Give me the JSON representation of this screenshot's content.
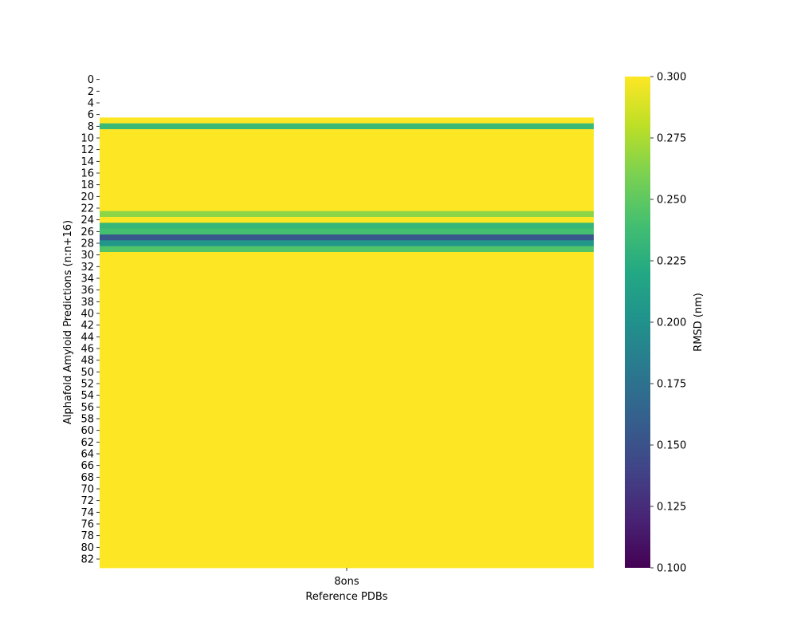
{
  "chart_data": {
    "type": "heatmap",
    "xlabel": "Reference PDBs",
    "ylabel": "Alphafold Amyloid Predictions (n:n+16)",
    "x_categories": [
      "8ons"
    ],
    "y_categories": [
      "0",
      "1",
      "2",
      "3",
      "4",
      "5",
      "6",
      "7",
      "8",
      "9",
      "10",
      "11",
      "12",
      "13",
      "14",
      "15",
      "16",
      "17",
      "18",
      "19",
      "20",
      "21",
      "22",
      "23",
      "24",
      "25",
      "26",
      "27",
      "28",
      "29",
      "30",
      "31",
      "32",
      "33",
      "34",
      "35",
      "36",
      "37",
      "38",
      "39",
      "40",
      "41",
      "42",
      "43",
      "44",
      "45",
      "46",
      "47",
      "48",
      "49",
      "50",
      "51",
      "52",
      "53",
      "54",
      "55",
      "56",
      "57",
      "58",
      "59",
      "60",
      "61",
      "62",
      "63",
      "64",
      "65",
      "66",
      "67",
      "68",
      "69",
      "70",
      "71",
      "72",
      "73",
      "74",
      "75",
      "76",
      "77",
      "78",
      "79",
      "80",
      "81",
      "82",
      "83"
    ],
    "y_tick_labels": [
      "0",
      "2",
      "4",
      "6",
      "8",
      "10",
      "12",
      "14",
      "16",
      "18",
      "20",
      "22",
      "24",
      "26",
      "28",
      "30",
      "32",
      "34",
      "36",
      "38",
      "40",
      "42",
      "44",
      "46",
      "48",
      "50",
      "52",
      "54",
      "56",
      "58",
      "60",
      "62",
      "64",
      "66",
      "68",
      "70",
      "72",
      "74",
      "76",
      "78",
      "80",
      "82"
    ],
    "values": [
      null,
      null,
      null,
      null,
      null,
      null,
      null,
      0.3,
      0.235,
      0.3,
      0.3,
      0.3,
      0.3,
      0.3,
      0.3,
      0.3,
      0.3,
      0.3,
      0.3,
      0.3,
      0.3,
      0.3,
      0.3,
      0.265,
      0.3,
      0.232,
      0.24,
      0.155,
      0.205,
      0.245,
      0.3,
      0.3,
      0.3,
      0.3,
      0.3,
      0.3,
      0.3,
      0.3,
      0.3,
      0.3,
      0.3,
      0.3,
      0.3,
      0.3,
      0.3,
      0.3,
      0.3,
      0.3,
      0.3,
      0.3,
      0.3,
      0.3,
      0.3,
      0.3,
      0.3,
      0.3,
      0.3,
      0.3,
      0.3,
      0.3,
      0.3,
      0.3,
      0.3,
      0.3,
      0.3,
      0.3,
      0.3,
      0.3,
      0.3,
      0.3,
      0.3,
      0.3,
      0.3,
      0.3,
      0.3,
      0.3,
      0.3,
      0.3,
      0.3,
      0.3,
      0.3,
      0.3,
      0.3,
      0.3
    ],
    "colorbar": {
      "label": "RMSD (nm)",
      "vmin": 0.1,
      "vmax": 0.3,
      "ticks": [
        "0.100",
        "0.125",
        "0.150",
        "0.175",
        "0.200",
        "0.225",
        "0.250",
        "0.275",
        "0.300"
      ],
      "colormap": "viridis"
    }
  }
}
